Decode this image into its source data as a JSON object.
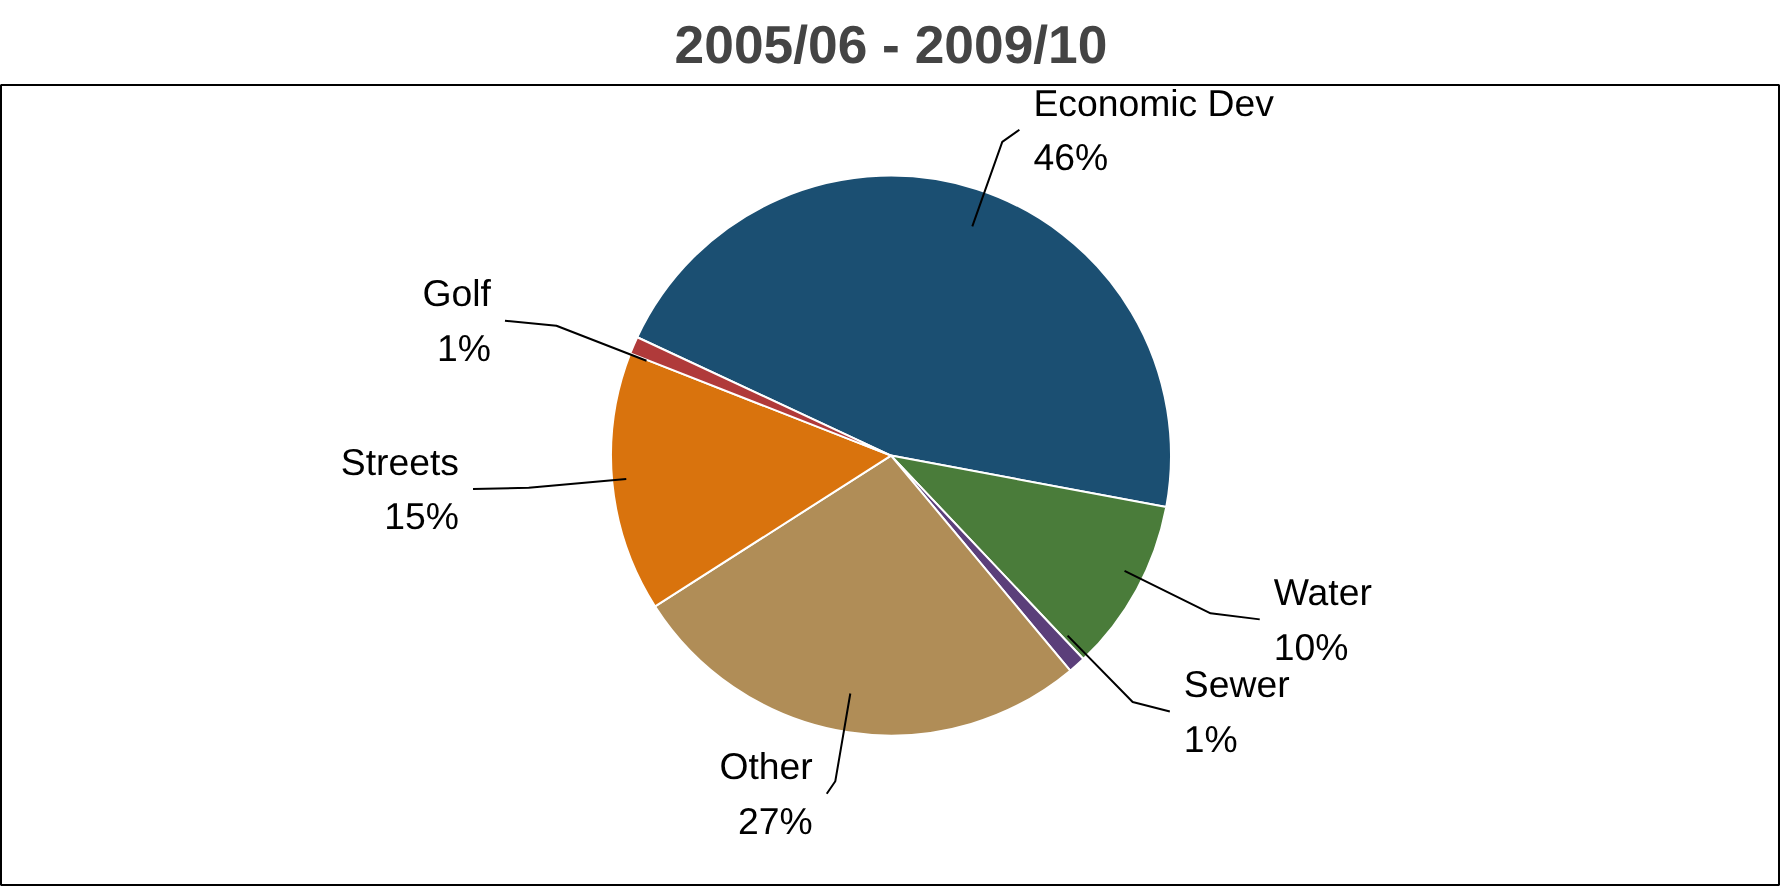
{
  "chart_data": {
    "type": "pie",
    "title": "2005/06 - 2009/10",
    "categories": [
      "Economic Dev",
      "Water",
      "Sewer",
      "Other",
      "Streets",
      "Golf"
    ],
    "values": [
      46,
      10,
      1,
      27,
      15,
      1
    ],
    "colors": [
      "#1b4f72",
      "#4a7c3a",
      "#5b3f7a",
      "#b08d57",
      "#d9730d",
      "#b03a3a"
    ],
    "value_labels": [
      "46%",
      "10%",
      "1%",
      "27%",
      "15%",
      "1%"
    ]
  }
}
